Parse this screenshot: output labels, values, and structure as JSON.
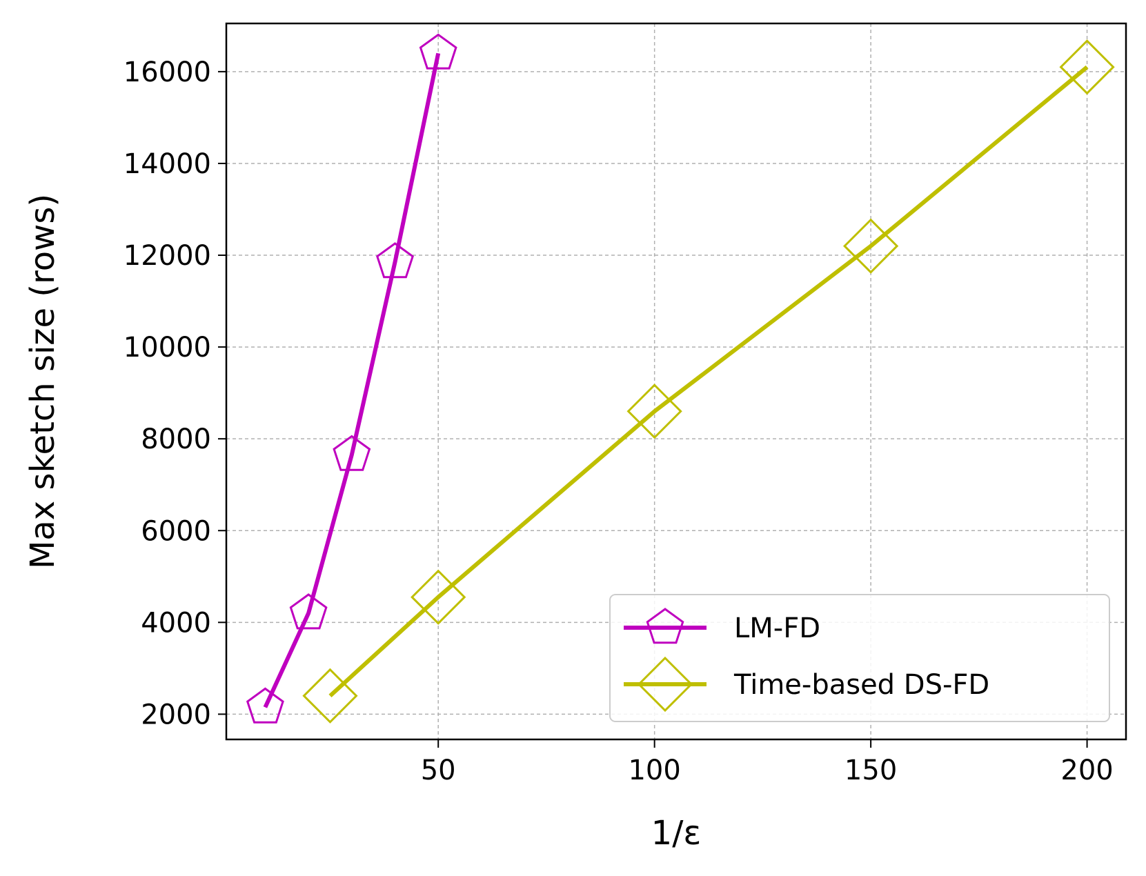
{
  "chart_data": {
    "type": "line",
    "xlabel": "1/ε",
    "ylabel": "Max sketch size (rows)",
    "xlim": [
      1,
      209
    ],
    "ylim": [
      1450,
      17050
    ],
    "x_ticks": [
      50,
      100,
      150,
      200
    ],
    "y_ticks": [
      2000,
      4000,
      6000,
      8000,
      10000,
      12000,
      14000,
      16000
    ],
    "grid": true,
    "legend_position": "lower right",
    "series": [
      {
        "name": "LM-FD",
        "color": "#bf00bf",
        "marker": "pentagon",
        "x": [
          10,
          20,
          30,
          40,
          50
        ],
        "y": [
          2150,
          4200,
          7650,
          11850,
          16400
        ]
      },
      {
        "name": "Time-based DS-FD",
        "color": "#bfbf00",
        "marker": "diamond",
        "x": [
          25,
          50,
          100,
          150,
          200
        ],
        "y": [
          2400,
          4550,
          8600,
          12200,
          16100
        ]
      }
    ]
  }
}
